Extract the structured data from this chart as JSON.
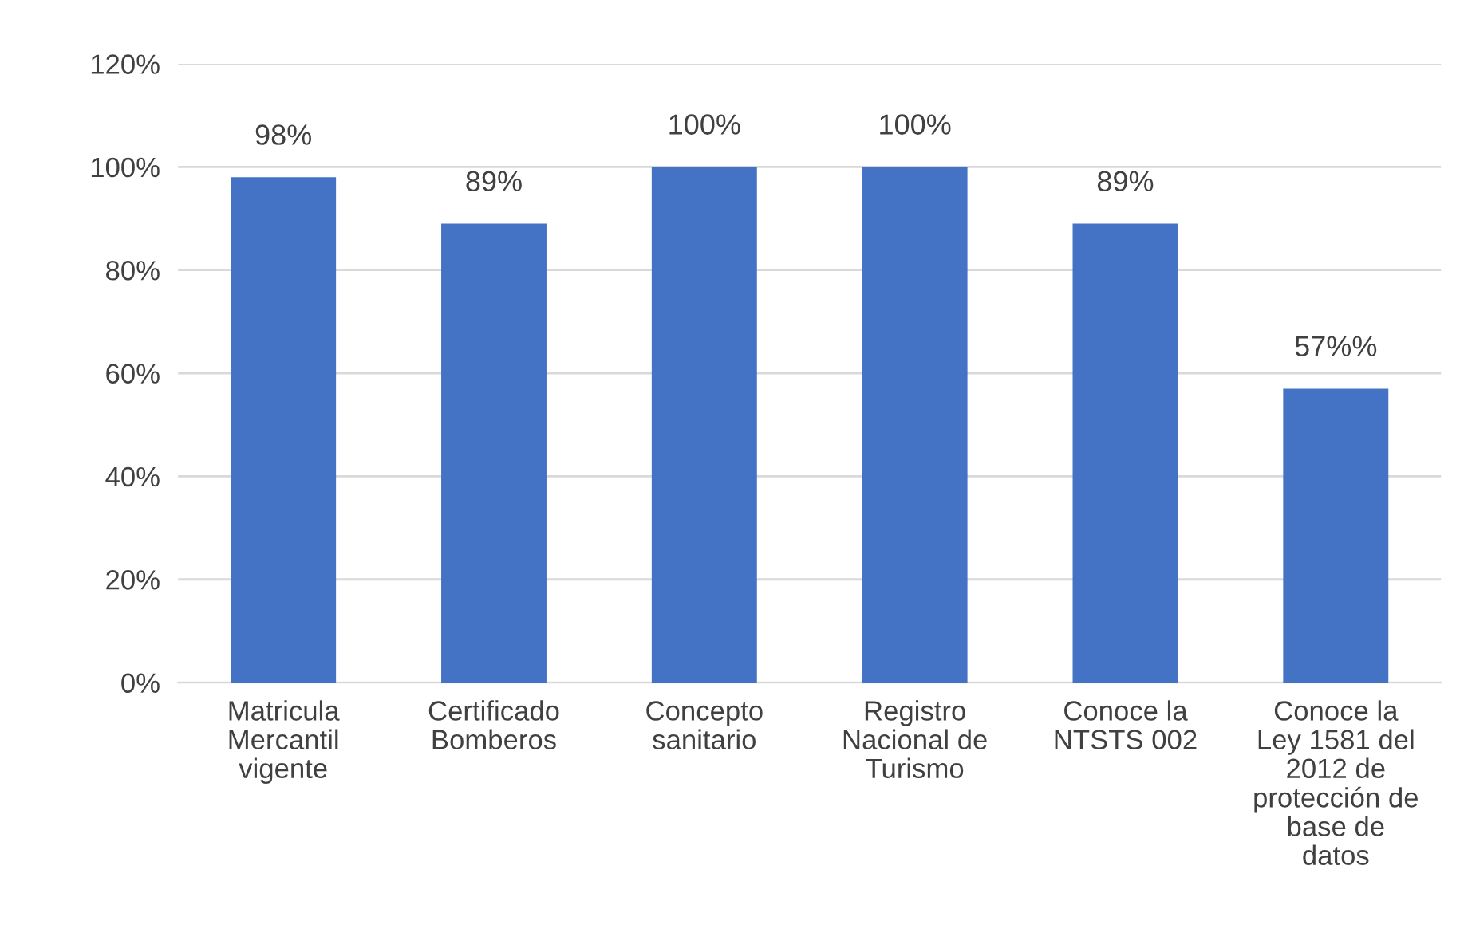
{
  "chart_data": {
    "type": "bar",
    "categories": [
      "Matricula\nMercantil\nvigente",
      "Certificado\nBomberos",
      "Concepto\nsanitario",
      "Registro\nNacional de\nTurismo",
      "Conoce la\nNTSTS 002",
      "Conoce la\nLey 1581 del\n2012 de\nprotección de\nbase de\ndatos"
    ],
    "values": [
      98,
      89,
      100,
      100,
      89,
      57
    ],
    "value_labels": [
      "98%",
      "89%",
      "100%",
      "100%",
      "89%",
      "57%%"
    ],
    "color": "#4472c4",
    "ylim": [
      0,
      120
    ],
    "yticks": [
      {
        "value": 0,
        "label": "0%"
      },
      {
        "value": 20,
        "label": "20%"
      },
      {
        "value": 40,
        "label": "40%"
      },
      {
        "value": 60,
        "label": "60%"
      },
      {
        "value": 80,
        "label": "80%"
      },
      {
        "value": 100,
        "label": "100%"
      },
      {
        "value": 120,
        "label": "120%"
      }
    ],
    "grid": "y"
  }
}
